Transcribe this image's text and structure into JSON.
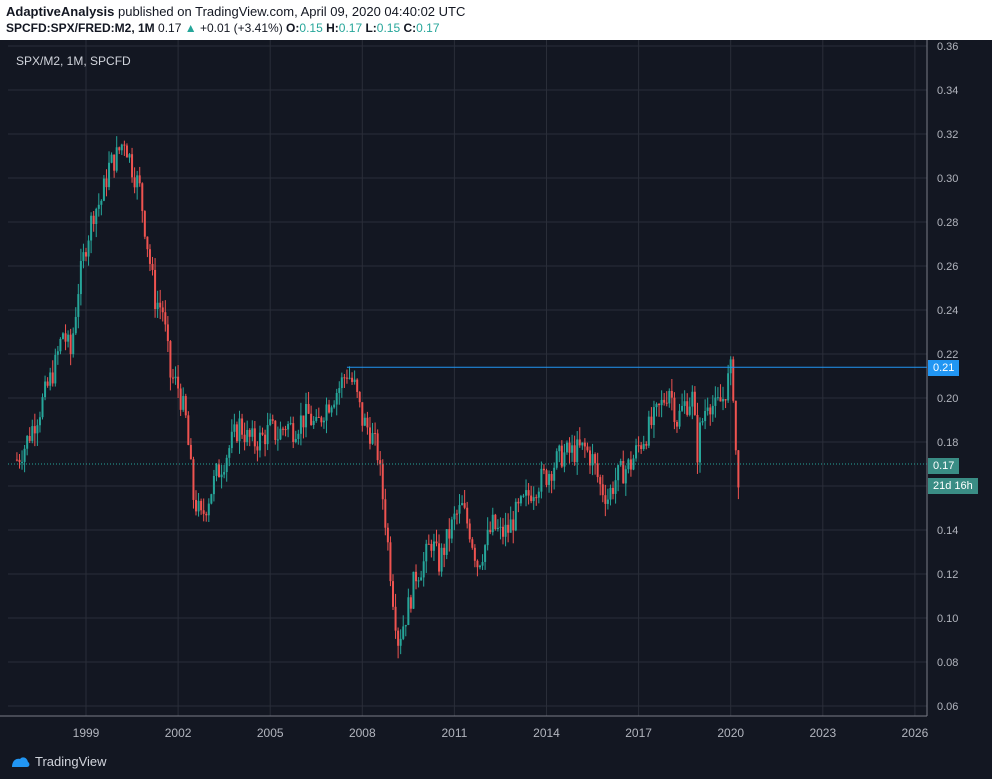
{
  "header": {
    "author": "AdaptiveAnalysis",
    "published_text": "published on TradingView.com, April 09, 2020 04:40:02 UTC",
    "symbol": "SPCFD:SPX/FRED:M2, 1M",
    "last": "0.17",
    "change_arrow": "▲",
    "change": "+0.01 (+3.41%)",
    "o_label": "O:",
    "o_value": "0.15",
    "h_label": "H:",
    "h_value": "0.17",
    "l_label": "L:",
    "l_value": "0.15",
    "c_label": "C:",
    "c_value": "0.17"
  },
  "legend_text": "SPX/M2, 1M, SPCFD",
  "price_tags": {
    "resistance": "0.21",
    "current": "0.17",
    "countdown": "21d 16h"
  },
  "footer": {
    "brand": "TradingView",
    "logo_icon": "tradingview-logo-icon"
  },
  "colors": {
    "background": "#131722",
    "grid": "#2a2e39",
    "up": "#26a69a",
    "down": "#ef5350",
    "resistance": "#2196f3"
  },
  "chart_data": {
    "type": "candlestick",
    "title": "SPX/M2, 1M, SPCFD",
    "x_ticks": [
      "1999",
      "2002",
      "2005",
      "2008",
      "2011",
      "2014",
      "2017",
      "2020",
      "2023",
      "2026"
    ],
    "x_range": [
      1996.75,
      2026.75
    ],
    "y_ticks": [
      0.06,
      0.08,
      0.1,
      0.12,
      0.14,
      0.16,
      0.18,
      0.2,
      0.22,
      0.24,
      0.26,
      0.28,
      0.3,
      0.32,
      0.34,
      0.36
    ],
    "ylim": [
      0.055,
      0.36
    ],
    "grid": true,
    "resistance_level": 0.214,
    "resistance_from": 2007.5,
    "current_price": 0.17,
    "closes": [
      [
        1996.75,
        0.172
      ],
      [
        1997.0,
        0.178
      ],
      [
        1997.5,
        0.195
      ],
      [
        1998.0,
        0.215
      ],
      [
        1998.25,
        0.23
      ],
      [
        1998.5,
        0.22
      ],
      [
        1998.75,
        0.25
      ],
      [
        1999.0,
        0.27
      ],
      [
        1999.25,
        0.285
      ],
      [
        1999.5,
        0.29
      ],
      [
        1999.75,
        0.305
      ],
      [
        2000.0,
        0.31
      ],
      [
        2000.25,
        0.318
      ],
      [
        2000.5,
        0.305
      ],
      [
        2000.75,
        0.295
      ],
      [
        2001.0,
        0.27
      ],
      [
        2001.25,
        0.245
      ],
      [
        2001.5,
        0.24
      ],
      [
        2001.75,
        0.21
      ],
      [
        2002.0,
        0.205
      ],
      [
        2002.25,
        0.19
      ],
      [
        2002.5,
        0.155
      ],
      [
        2002.75,
        0.145
      ],
      [
        2003.0,
        0.155
      ],
      [
        2003.25,
        0.165
      ],
      [
        2003.5,
        0.172
      ],
      [
        2003.75,
        0.18
      ],
      [
        2004.0,
        0.188
      ],
      [
        2004.25,
        0.182
      ],
      [
        2004.5,
        0.18
      ],
      [
        2004.75,
        0.182
      ],
      [
        2005.0,
        0.186
      ],
      [
        2005.25,
        0.183
      ],
      [
        2005.5,
        0.188
      ],
      [
        2005.75,
        0.186
      ],
      [
        2006.0,
        0.19
      ],
      [
        2006.25,
        0.192
      ],
      [
        2006.5,
        0.186
      ],
      [
        2006.75,
        0.195
      ],
      [
        2007.0,
        0.2
      ],
      [
        2007.25,
        0.205
      ],
      [
        2007.5,
        0.212
      ],
      [
        2007.75,
        0.205
      ],
      [
        2008.0,
        0.19
      ],
      [
        2008.25,
        0.185
      ],
      [
        2008.5,
        0.175
      ],
      [
        2008.75,
        0.145
      ],
      [
        2009.0,
        0.11
      ],
      [
        2009.17,
        0.09
      ],
      [
        2009.5,
        0.105
      ],
      [
        2009.75,
        0.12
      ],
      [
        2010.0,
        0.125
      ],
      [
        2010.25,
        0.135
      ],
      [
        2010.5,
        0.125
      ],
      [
        2010.75,
        0.135
      ],
      [
        2011.0,
        0.145
      ],
      [
        2011.25,
        0.15
      ],
      [
        2011.5,
        0.14
      ],
      [
        2011.75,
        0.125
      ],
      [
        2012.0,
        0.133
      ],
      [
        2012.25,
        0.142
      ],
      [
        2012.5,
        0.138
      ],
      [
        2012.75,
        0.14
      ],
      [
        2013.0,
        0.147
      ],
      [
        2013.25,
        0.152
      ],
      [
        2013.5,
        0.158
      ],
      [
        2013.75,
        0.162
      ],
      [
        2014.0,
        0.165
      ],
      [
        2014.25,
        0.17
      ],
      [
        2014.5,
        0.174
      ],
      [
        2014.75,
        0.175
      ],
      [
        2015.0,
        0.176
      ],
      [
        2015.25,
        0.177
      ],
      [
        2015.5,
        0.172
      ],
      [
        2015.75,
        0.16
      ],
      [
        2016.0,
        0.155
      ],
      [
        2016.25,
        0.163
      ],
      [
        2016.5,
        0.167
      ],
      [
        2016.75,
        0.17
      ],
      [
        2017.0,
        0.178
      ],
      [
        2017.25,
        0.184
      ],
      [
        2017.5,
        0.19
      ],
      [
        2017.75,
        0.197
      ],
      [
        2018.0,
        0.205
      ],
      [
        2018.25,
        0.19
      ],
      [
        2018.5,
        0.197
      ],
      [
        2018.75,
        0.2
      ],
      [
        2018.92,
        0.175
      ],
      [
        2019.0,
        0.185
      ],
      [
        2019.25,
        0.2
      ],
      [
        2019.5,
        0.195
      ],
      [
        2019.75,
        0.2
      ],
      [
        2020.0,
        0.212
      ],
      [
        2020.08,
        0.205
      ],
      [
        2020.17,
        0.175
      ],
      [
        2020.25,
        0.157
      ],
      [
        2020.33,
        0.17
      ]
    ]
  }
}
